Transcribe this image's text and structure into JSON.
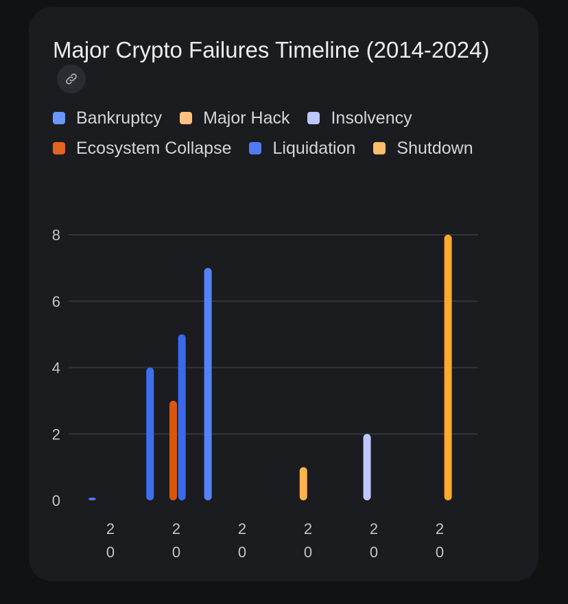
{
  "title": "Major Crypto Failures Timeline (2014-2024)",
  "link_icon": "link-icon",
  "legend": [
    {
      "label": "Bankruptcy",
      "color": "#6a96ff"
    },
    {
      "label": "Major Hack",
      "color": "#ffc080"
    },
    {
      "label": "Insolvency",
      "color": "#bcc8ff"
    },
    {
      "label": "Ecosystem Collapse",
      "color": "#e2641f"
    },
    {
      "label": "Liquidation",
      "color": "#4f7cf5"
    },
    {
      "label": "Shutdown",
      "color": "#ffbd6e"
    }
  ],
  "chart_data": {
    "type": "bar",
    "ylim": [
      0,
      8
    ],
    "yticks": [
      0,
      2,
      4,
      6,
      8
    ],
    "xtick_labels": [
      "2\n0",
      "2\n0",
      "2\n0",
      "2\n0",
      "2\n0",
      "2\n0"
    ],
    "grid": true,
    "legend_position": "top-left",
    "bars": [
      {
        "series": "Bankruptcy",
        "x": 2014.2,
        "value": 0.08,
        "color": "#4f7cf5"
      },
      {
        "series": "Liquidation",
        "x": 2016.2,
        "value": 4,
        "color": "#3f6ef0"
      },
      {
        "series": "Ecosystem Collapse",
        "x": 2017.0,
        "value": 3,
        "color": "#d9560f"
      },
      {
        "series": "Bankruptcy",
        "x": 2017.3,
        "value": 5,
        "color": "#3b69ee"
      },
      {
        "series": "Liquidation",
        "x": 2018.2,
        "value": 7,
        "color": "#5583f7"
      },
      {
        "series": "Major Hack",
        "x": 2021.5,
        "value": 1,
        "color": "#ffb24d"
      },
      {
        "series": "Insolvency",
        "x": 2023.7,
        "value": 2,
        "color": "#bcc8ff"
      },
      {
        "series": "Shutdown",
        "x": 2026.5,
        "value": 8,
        "color": "#ffa92e"
      }
    ],
    "x_domain": [
      2014,
      2026.9
    ]
  }
}
